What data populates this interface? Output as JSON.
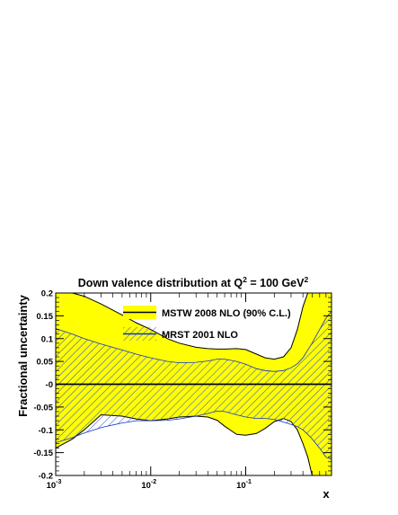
{
  "chart_data": {
    "type": "area",
    "title": "Down valence distribution at Q",
    "title_sup1": "2",
    "title_mid": " = 100 GeV",
    "title_sup2": "2",
    "xlabel": "x",
    "ylabel": "Fractional uncertainty",
    "x_scale": "log",
    "xlim": [
      0.001,
      0.8
    ],
    "ylim": [
      -0.2,
      0.2
    ],
    "x_ticks": [
      {
        "value": 0.001,
        "base": "10",
        "exp": "-3"
      },
      {
        "value": 0.01,
        "base": "10",
        "exp": "-2"
      },
      {
        "value": 0.1,
        "base": "10",
        "exp": "-1"
      }
    ],
    "y_ticks": [
      {
        "value": 0.2,
        "label": "0.2"
      },
      {
        "value": 0.15,
        "label": "0.15"
      },
      {
        "value": 0.1,
        "label": "0.1"
      },
      {
        "value": 0.05,
        "label": "0.05"
      },
      {
        "value": 0,
        "label": "-0"
      },
      {
        "value": -0.05,
        "label": "-0.05"
      },
      {
        "value": -0.1,
        "label": "-0.1"
      },
      {
        "value": -0.15,
        "label": "-0.15"
      },
      {
        "value": -0.2,
        "label": "-0.2"
      }
    ],
    "legend_position": "top-center",
    "series": [
      {
        "name": "MSTW 2008 NLO (90% C.L.)",
        "style": "yellow band with black central line",
        "fill": "#ffff00",
        "line": "#000000",
        "x": [
          0.001,
          0.0015,
          0.002,
          0.003,
          0.005,
          0.007,
          0.01,
          0.015,
          0.02,
          0.03,
          0.04,
          0.05,
          0.06,
          0.08,
          0.1,
          0.13,
          0.16,
          0.2,
          0.25,
          0.3,
          0.35,
          0.4,
          0.45,
          0.5,
          0.6,
          0.7,
          0.8
        ],
        "upper": [
          0.2,
          0.2,
          0.193,
          0.176,
          0.152,
          0.135,
          0.12,
          0.1,
          0.09,
          0.081,
          0.078,
          0.077,
          0.077,
          0.078,
          0.076,
          0.066,
          0.058,
          0.055,
          0.06,
          0.08,
          0.12,
          0.17,
          0.2,
          0.2,
          0.2,
          0.2,
          0.2
        ],
        "lower": [
          -0.14,
          -0.12,
          -0.1,
          -0.067,
          -0.07,
          -0.076,
          -0.08,
          -0.076,
          -0.072,
          -0.07,
          -0.072,
          -0.079,
          -0.092,
          -0.11,
          -0.112,
          -0.108,
          -0.097,
          -0.082,
          -0.075,
          -0.082,
          -0.1,
          -0.13,
          -0.16,
          -0.2,
          -0.2,
          -0.2,
          -0.2
        ]
      },
      {
        "name": "MRST 2001 NLO",
        "style": "blue hatched band with blue central line",
        "fill": "#3355dd",
        "line": "#1133cc",
        "x": [
          0.001,
          0.0015,
          0.002,
          0.003,
          0.005,
          0.007,
          0.01,
          0.015,
          0.02,
          0.03,
          0.04,
          0.05,
          0.06,
          0.08,
          0.1,
          0.13,
          0.16,
          0.2,
          0.25,
          0.3,
          0.35,
          0.4,
          0.45,
          0.5,
          0.6,
          0.7,
          0.8
        ],
        "upper": [
          0.122,
          0.11,
          0.1,
          0.088,
          0.075,
          0.066,
          0.058,
          0.05,
          0.047,
          0.048,
          0.051,
          0.055,
          0.055,
          0.05,
          0.044,
          0.034,
          0.03,
          0.028,
          0.03,
          0.036,
          0.045,
          0.058,
          0.075,
          0.09,
          0.12,
          0.145,
          0.16
        ],
        "lower": [
          -0.128,
          -0.117,
          -0.107,
          -0.095,
          -0.085,
          -0.08,
          -0.08,
          -0.079,
          -0.076,
          -0.07,
          -0.064,
          -0.059,
          -0.06,
          -0.067,
          -0.072,
          -0.075,
          -0.075,
          -0.077,
          -0.083,
          -0.088,
          -0.093,
          -0.1,
          -0.11,
          -0.12,
          -0.14,
          -0.16,
          -0.165
        ]
      }
    ]
  }
}
